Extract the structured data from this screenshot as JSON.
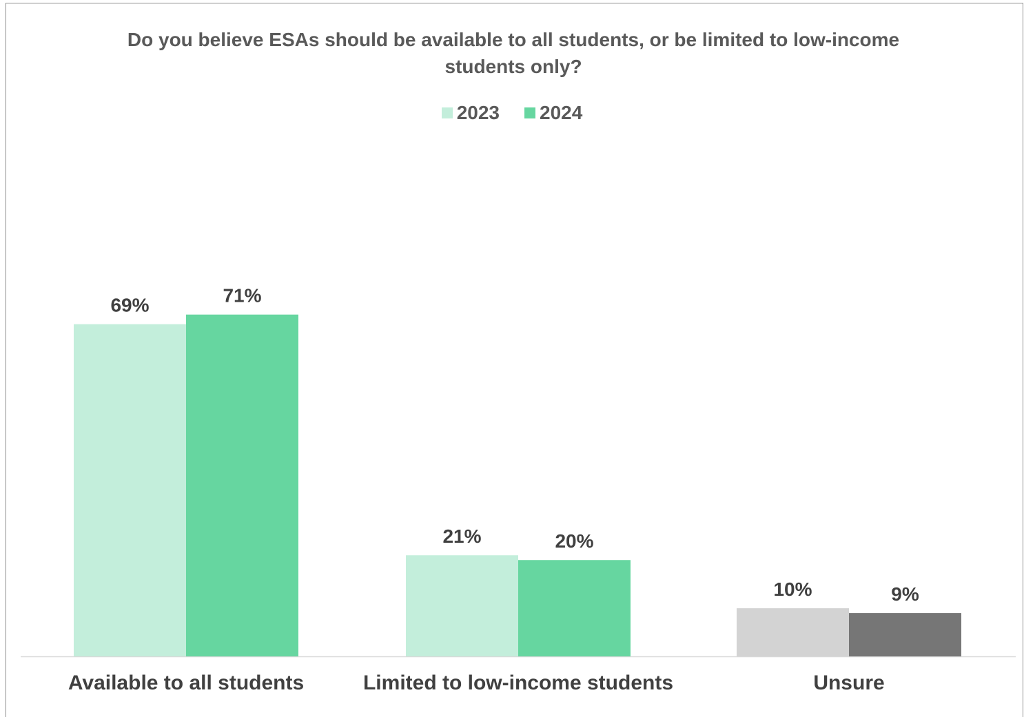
{
  "chart_data": {
    "type": "bar",
    "title": "Do you believe ESAs should be available to all students, or be limited to low-income students only?",
    "categories": [
      "Available to all students",
      "Limited to low-income students",
      "Unsure"
    ],
    "series": [
      {
        "name": "2023",
        "values": [
          69,
          21,
          10
        ],
        "labels": [
          "69%",
          "21%",
          "10%"
        ],
        "color": "#c3eedb",
        "point_colors": [
          "#c3eedb",
          "#c3eedb",
          "#d3d3d3"
        ]
      },
      {
        "name": "2024",
        "values": [
          71,
          20,
          9
        ],
        "labels": [
          "71%",
          "20%",
          "9%"
        ],
        "color": "#66d6a0",
        "point_colors": [
          "#66d6a0",
          "#66d6a0",
          "#767676"
        ]
      }
    ],
    "ylim": [
      0,
      100
    ],
    "grid": false,
    "legend_position": "top",
    "xlabel": "",
    "ylabel": ""
  }
}
